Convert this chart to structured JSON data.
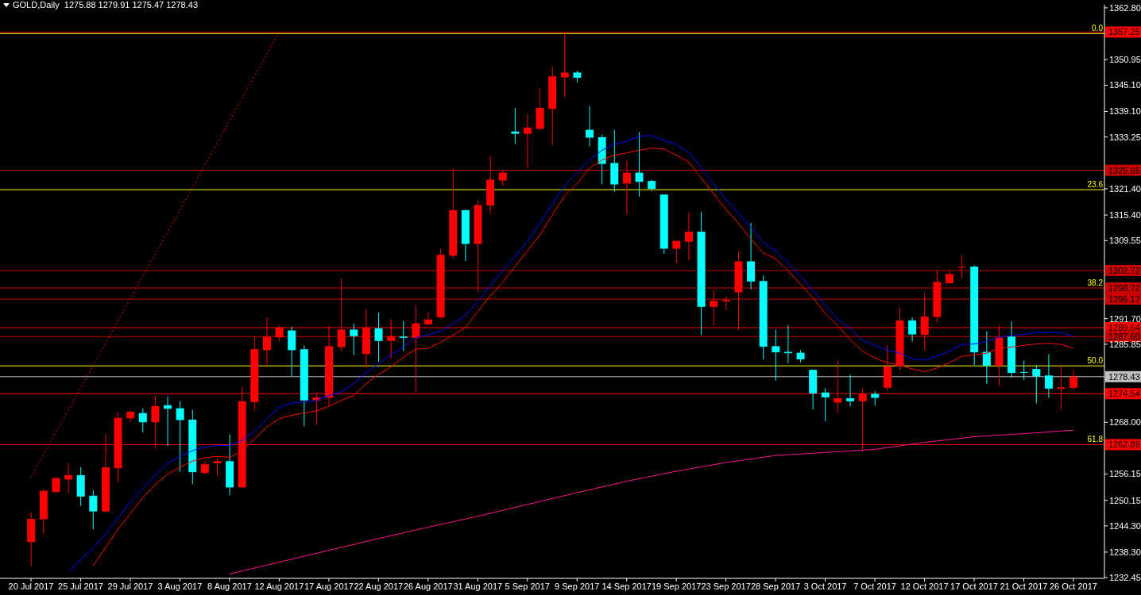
{
  "chart_data": {
    "type": "candlestick",
    "title": "GOLD,Daily  1275.88 1279.91 1275.47 1278.43",
    "categories": [
      "20 Jul 2017",
      null,
      null,
      null,
      "25 Jul 2017",
      null,
      null,
      null,
      "29 Jul 2017",
      null,
      null,
      null,
      "3 Aug 2017",
      null,
      null,
      null,
      "8 Aug 2017",
      null,
      null,
      null,
      "12 Aug 2017",
      null,
      null,
      null,
      "17 Aug 2017",
      null,
      null,
      null,
      "22 Aug 2017",
      null,
      null,
      null,
      "26 Aug 2017",
      null,
      null,
      null,
      "31 Aug 2017",
      null,
      null,
      null,
      "5 Sep 2017",
      null,
      null,
      null,
      "9 Sep 2017",
      null,
      null,
      null,
      "14 Sep 2017",
      null,
      null,
      null,
      "19 Sep 2017",
      null,
      null,
      null,
      "23 Sep 2017",
      null,
      null,
      null,
      "28 Sep 2017",
      null,
      null,
      null,
      "3 Oct 2017",
      null,
      null,
      null,
      "7 Oct 2017",
      null,
      null,
      null,
      "12 Oct 2017",
      null,
      null,
      null,
      "17 Oct 2017",
      null,
      null,
      null,
      "21 Oct 2017",
      null,
      null,
      null,
      "26 Oct 2017"
    ],
    "ohlc": [
      [
        1240.6,
        1247.4,
        1235.1,
        1245.9
      ],
      [
        1245.8,
        1252.6,
        1242.4,
        1252.3
      ],
      [
        1252.1,
        1255.6,
        1251.8,
        1255.2
      ],
      [
        1254.9,
        1258.7,
        1251.8,
        1255.9
      ],
      [
        1255.9,
        1257.7,
        1248.9,
        1251.0
      ],
      [
        1251.2,
        1252.4,
        1243.5,
        1247.6
      ],
      [
        1247.6,
        1265.2,
        1247.4,
        1257.7
      ],
      [
        1257.5,
        1270.4,
        1254.3,
        1269.0
      ],
      [
        1268.9,
        1270.8,
        1268.0,
        1270.4
      ],
      [
        1270.1,
        1271.2,
        1265.7,
        1268.0
      ],
      [
        1268.0,
        1274.1,
        1262.2,
        1271.7
      ],
      [
        1271.9,
        1273.9,
        1262.6,
        1271.1
      ],
      [
        1271.2,
        1272.8,
        1256.6,
        1268.5
      ],
      [
        1268.6,
        1270.8,
        1253.9,
        1256.6
      ],
      [
        1256.4,
        1259.1,
        1256.1,
        1258.4
      ],
      [
        1258.6,
        1259.8,
        1255.6,
        1259.1
      ],
      [
        1259.1,
        1265.2,
        1251.3,
        1253.1
      ],
      [
        1253.1,
        1276.2,
        1253.1,
        1272.8
      ],
      [
        1272.6,
        1287.6,
        1270.8,
        1284.7
      ],
      [
        1284.5,
        1292.1,
        1281.1,
        1287.6
      ],
      [
        1287.4,
        1290.1,
        1286.5,
        1289.7
      ],
      [
        1289.0,
        1289.9,
        1278.5,
        1284.5
      ],
      [
        1284.7,
        1285.6,
        1267.1,
        1273.0
      ],
      [
        1273.0,
        1274.9,
        1267.6,
        1273.7
      ],
      [
        1273.6,
        1290.1,
        1271.6,
        1285.4
      ],
      [
        1285.2,
        1300.9,
        1284.3,
        1289.2
      ],
      [
        1289.2,
        1290.6,
        1283.4,
        1287.7
      ],
      [
        1283.6,
        1293.9,
        1280.5,
        1289.7
      ],
      [
        1289.5,
        1293.1,
        1281.8,
        1286.6
      ],
      [
        1286.6,
        1291.5,
        1282.5,
        1287.7
      ],
      [
        1287.6,
        1291.2,
        1284.3,
        1287.3
      ],
      [
        1287.3,
        1294.8,
        1274.8,
        1290.6
      ],
      [
        1290.4,
        1293.2,
        1290.1,
        1291.5
      ],
      [
        1292.0,
        1307.7,
        1291.7,
        1306.3
      ],
      [
        1306.1,
        1326.0,
        1305.6,
        1316.5
      ],
      [
        1316.5,
        1316.7,
        1304.9,
        1308.8
      ],
      [
        1308.8,
        1318.8,
        1297.7,
        1317.7
      ],
      [
        1317.6,
        1328.9,
        1315.6,
        1323.5
      ],
      [
        1323.3,
        1325.7,
        1322.1,
        1325.1
      ],
      [
        1334.5,
        1339.9,
        1331.7,
        1334.0
      ],
      [
        1334.0,
        1338.6,
        1326.0,
        1335.4
      ],
      [
        1335.1,
        1344.4,
        1335.1,
        1339.9
      ],
      [
        1339.7,
        1349.4,
        1331.4,
        1347.1
      ],
      [
        1346.9,
        1357.25,
        1342.3,
        1348.0
      ],
      [
        1348.0,
        1348.4,
        1345.7,
        1346.8
      ],
      [
        1334.9,
        1340.3,
        1331.1,
        1333.1
      ],
      [
        1333.2,
        1333.8,
        1322.4,
        1327.1
      ],
      [
        1327.3,
        1334.9,
        1320.7,
        1322.4
      ],
      [
        1322.6,
        1327.8,
        1315.5,
        1325.1
      ],
      [
        1325.1,
        1334.3,
        1319.6,
        1323.0
      ],
      [
        1323.2,
        1323.5,
        1320.9,
        1321.4
      ],
      [
        1320.1,
        1320.1,
        1306.5,
        1307.7
      ],
      [
        1307.7,
        1309.5,
        1304.5,
        1309.5
      ],
      [
        1309.3,
        1316.0,
        1305.0,
        1311.6
      ],
      [
        1311.6,
        1316.1,
        1287.9,
        1294.4
      ],
      [
        1294.4,
        1298.2,
        1290.1,
        1295.8
      ],
      [
        1295.7,
        1296.7,
        1293.7,
        1296.0
      ],
      [
        1297.7,
        1307.0,
        1289.0,
        1304.8
      ],
      [
        1304.8,
        1313.6,
        1298.4,
        1300.2
      ],
      [
        1300.3,
        1301.6,
        1282.4,
        1285.3
      ],
      [
        1285.4,
        1289.2,
        1277.5,
        1284.0
      ],
      [
        1284.1,
        1290.2,
        1281.5,
        1283.8
      ],
      [
        1283.9,
        1284.5,
        1281.7,
        1282.4
      ],
      [
        1280.0,
        1280.0,
        1270.9,
        1274.6
      ],
      [
        1274.8,
        1275.8,
        1268.2,
        1273.7
      ],
      [
        1272.5,
        1282.1,
        1270.1,
        1273.5
      ],
      [
        1273.5,
        1278.9,
        1271.6,
        1272.8
      ],
      [
        1272.8,
        1275.7,
        1261.3,
        1274.5
      ],
      [
        1274.5,
        1275.1,
        1271.8,
        1273.6
      ],
      [
        1275.9,
        1285.6,
        1275.2,
        1280.8
      ],
      [
        1280.8,
        1294.2,
        1280.0,
        1291.3
      ],
      [
        1291.3,
        1292.0,
        1286.5,
        1288.1
      ],
      [
        1288.0,
        1297.4,
        1284.4,
        1292.2
      ],
      [
        1292.1,
        1302.7,
        1290.8,
        1300.1
      ],
      [
        1299.8,
        1302.7,
        1299.8,
        1301.9
      ],
      [
        1303.4,
        1306.1,
        1300.9,
        1303.6
      ],
      [
        1303.6,
        1303.9,
        1281.1,
        1284.0
      ],
      [
        1284.1,
        1288.8,
        1276.8,
        1280.9
      ],
      [
        1280.9,
        1290.1,
        1276.4,
        1287.4
      ],
      [
        1287.6,
        1291.1,
        1278.2,
        1279.3
      ],
      [
        1279.5,
        1282.1,
        1277.7,
        1279.4
      ],
      [
        1280.2,
        1281.1,
        1272.3,
        1278.5
      ],
      [
        1278.7,
        1283.6,
        1273.6,
        1275.7
      ],
      [
        1275.7,
        1281.2,
        1270.9,
        1276.0
      ],
      [
        1275.88,
        1279.91,
        1275.47,
        1278.43
      ]
    ],
    "colors": [
      "#ff0000",
      "#ff0000",
      "#ff0000",
      "#ff0000",
      "#00ffff",
      "#00ffff",
      "#ff0000",
      "#ff0000",
      "#ff0000",
      "#00ffff",
      "#ff0000",
      "#00ffff",
      "#00ffff",
      "#00ffff",
      "#ff0000",
      "#ff0000",
      "#00ffff",
      "#ff0000",
      "#ff0000",
      "#ff0000",
      "#ff0000",
      "#00ffff",
      "#00ffff",
      "#ff0000",
      "#ff0000",
      "#ff0000",
      "#00ffff",
      "#ff0000",
      "#00ffff",
      "#ff0000",
      "#00ffff",
      "#ff0000",
      "#ff0000",
      "#ff0000",
      "#ff0000",
      "#00ffff",
      "#ff0000",
      "#ff0000",
      "#ff0000",
      "#00ffff",
      "#ff0000",
      "#ff0000",
      "#ff0000",
      "#ff0000",
      "#00ffff",
      "#00ffff",
      "#00ffff",
      "#00ffff",
      "#ff0000",
      "#00ffff",
      "#00ffff",
      "#00ffff",
      "#ff0000",
      "#ff0000",
      "#00ffff",
      "#ff0000",
      "#ff0000",
      "#ff0000",
      "#00ffff",
      "#00ffff",
      "#00ffff",
      "#00ffff",
      "#00ffff",
      "#00ffff",
      "#00ffff",
      "#ff0000",
      "#00ffff",
      "#ff0000",
      "#00ffff",
      "#ff0000",
      "#ff0000",
      "#00ffff",
      "#ff0000",
      "#ff0000",
      "#ff0000",
      "#ff0000",
      "#00ffff",
      "#00ffff",
      "#ff0000",
      "#00ffff",
      "#00ffff",
      "#00ffff",
      "#00ffff",
      "#ff0000",
      "#ff0000"
    ],
    "series": [
      {
        "type": "line",
        "color": "#0000ff",
        "values": [
          null,
          null,
          null,
          1233.9,
          1236.6,
          1239.3,
          1242.4,
          1246.0,
          1249.8,
          1252.8,
          1255.9,
          1258.6,
          1260.2,
          1261.5,
          1262.4,
          1262.7,
          1262.7,
          1263.8,
          1266.0,
          1268.8,
          1271.4,
          1272.4,
          1272.6,
          1273.0,
          1274.1,
          1275.0,
          1276.8,
          1279.3,
          1281.4,
          1283.4,
          1285.2,
          1287.4,
          1288.0,
          1288.8,
          1290.6,
          1292.4,
          1295.7,
          1299.2,
          1302.7,
          1305.9,
          1309.5,
          1313.5,
          1318.0,
          1322.1,
          1325.2,
          1328.0,
          1330.2,
          1331.6,
          1332.3,
          1333.4,
          1333.6,
          1332.5,
          1331.5,
          1329.8,
          1326.2,
          1322.6,
          1319.0,
          1315.8,
          1312.6,
          1309.1,
          1307.2,
          1304.5,
          1301.4,
          1298.2,
          1294.8,
          1291.5,
          1289.4,
          1286.7,
          1285.6,
          1284.5,
          1283.8,
          1282.5,
          1282.2,
          1283.1,
          1284.3,
          1285.8,
          1285.9,
          1286.5,
          1287.4,
          1287.9,
          1288.1,
          1288.5,
          1288.6,
          1288.5,
          1287.6
        ]
      },
      {
        "type": "line",
        "color": "#ff0000",
        "values": [
          null,
          null,
          null,
          null,
          null,
          1235.2,
          1239.3,
          1243.5,
          1247.1,
          1250.7,
          1253.7,
          1256.1,
          1257.7,
          1259.1,
          1259.9,
          1260.2,
          1260.0,
          1261.3,
          1264.2,
          1266.9,
          1268.8,
          1269.6,
          1270.1,
          1270.6,
          1271.7,
          1273.0,
          1274.1,
          1276.8,
          1278.9,
          1280.7,
          1282.9,
          1284.7,
          1284.9,
          1286.3,
          1287.9,
          1289.7,
          1293.3,
          1296.9,
          1300.0,
          1303.6,
          1307.2,
          1310.8,
          1315.4,
          1319.8,
          1322.6,
          1326.1,
          1328.0,
          1329.1,
          1329.6,
          1330.2,
          1330.7,
          1330.5,
          1329.1,
          1327.5,
          1323.9,
          1320.3,
          1316.7,
          1313.5,
          1309.9,
          1306.8,
          1305.4,
          1302.7,
          1299.6,
          1296.5,
          1292.9,
          1290.1,
          1287.0,
          1284.3,
          1282.7,
          1281.6,
          1281.1,
          1280.2,
          1279.6,
          1280.4,
          1281.6,
          1283.1,
          1283.4,
          1283.8,
          1284.9,
          1285.2,
          1285.6,
          1285.9,
          1286.1,
          1285.8,
          1284.9
        ]
      },
      {
        "type": "line",
        "color": "#ff1493",
        "x": [
          "8 Aug 2017",
          "12 Aug 2017",
          "17 Aug 2017",
          "22 Aug 2017",
          "26 Aug 2017",
          "31 Aug 2017",
          "5 Sep 2017",
          "9 Sep 2017",
          "14 Sep 2017",
          "19 Sep 2017",
          "23 Sep 2017",
          "28 Sep 2017",
          "3 Oct 2017",
          "7 Oct 2017",
          "12 Oct 2017",
          "17 Oct 2017",
          "21 Oct 2017",
          "26 Oct 2017"
        ],
        "values": [
          1233.3,
          1236.0,
          1238.7,
          1241.4,
          1244.0,
          1246.5,
          1249.2,
          1251.9,
          1254.5,
          1256.8,
          1258.8,
          1260.4,
          1261.1,
          1261.8,
          1263.4,
          1264.7,
          1265.4,
          1266.2
        ]
      },
      {
        "type": "line",
        "color": "#ff0000",
        "line_style": "dotted",
        "x": [
          "20 Jul 2017",
          "12 Aug 2017"
        ],
        "values": [
          1255.5,
          1357.3
        ]
      }
    ],
    "ylim": [
      1232.3,
      1363.5
    ],
    "yticks": [
      {
        "value": 1362.8,
        "label": "1362.80"
      },
      1350.95,
      {
        "value": 1345.1,
        "label": "1345.10"
      },
      {
        "value": 1339.1,
        "label": "1339.10"
      },
      1333.25,
      {
        "value": 1321.4,
        "label": "1321.40"
      },
      {
        "value": 1315.4,
        "label": "1315.40"
      },
      1309.55,
      {
        "value": 1291.7,
        "label": "1291.70"
      },
      1285.85,
      {
        "value": 1268,
        "label": "1268.00"
      },
      1256.15,
      1250.15,
      {
        "value": 1244.3,
        "label": "1244.30"
      },
      {
        "value": 1238.3,
        "label": "1238.30"
      },
      1232.45
    ],
    "ref_lines": [
      {
        "axis": "y",
        "value": 1357.25,
        "label": "1357.25",
        "color": "#ff0000"
      },
      {
        "axis": "y",
        "value": 1325.65,
        "label": "1325.65",
        "color": "#cc0000"
      },
      {
        "axis": "y",
        "value": 1302.72,
        "label": "1302.72",
        "color": "#cc0000"
      },
      {
        "axis": "y",
        "value": 1298.72,
        "label": "1298.72",
        "color": "#cc0000"
      },
      {
        "axis": "y",
        "value": 1296.17,
        "label": "1296.17",
        "color": "#cc0000"
      },
      {
        "axis": "y",
        "value": 1289.64,
        "label": "1289.64",
        "color": "#ff0000"
      },
      {
        "axis": "y",
        "value": 1287.6,
        "label": "1287.60",
        "color": "#cc0000"
      },
      {
        "axis": "y",
        "value": 1278.43,
        "label": "1278.43",
        "color": "#c0c0c0"
      },
      {
        "axis": "y",
        "value": 1274.54,
        "label": "1274.54",
        "color": "#ff0000"
      },
      {
        "axis": "y",
        "value": 1262.89,
        "label": "1262.89",
        "color": "#ff0000"
      },
      {
        "axis": "y",
        "value": 1356.9,
        "color": "#ffff00"
      },
      {
        "axis": "y",
        "value": 1321.2,
        "color": "#ffff00"
      },
      {
        "axis": "y",
        "value": 1280.9,
        "color": "#ffff00"
      }
    ],
    "annotations": [
      {
        "text": "0.0",
        "y": 1356.9
      },
      {
        "text": "23.6",
        "y": 1321.2
      },
      {
        "text": "38.2",
        "y": 1298.7
      },
      {
        "text": "50.0",
        "y": 1280.9
      },
      {
        "text": "61.8",
        "y": 1262.9
      }
    ]
  }
}
